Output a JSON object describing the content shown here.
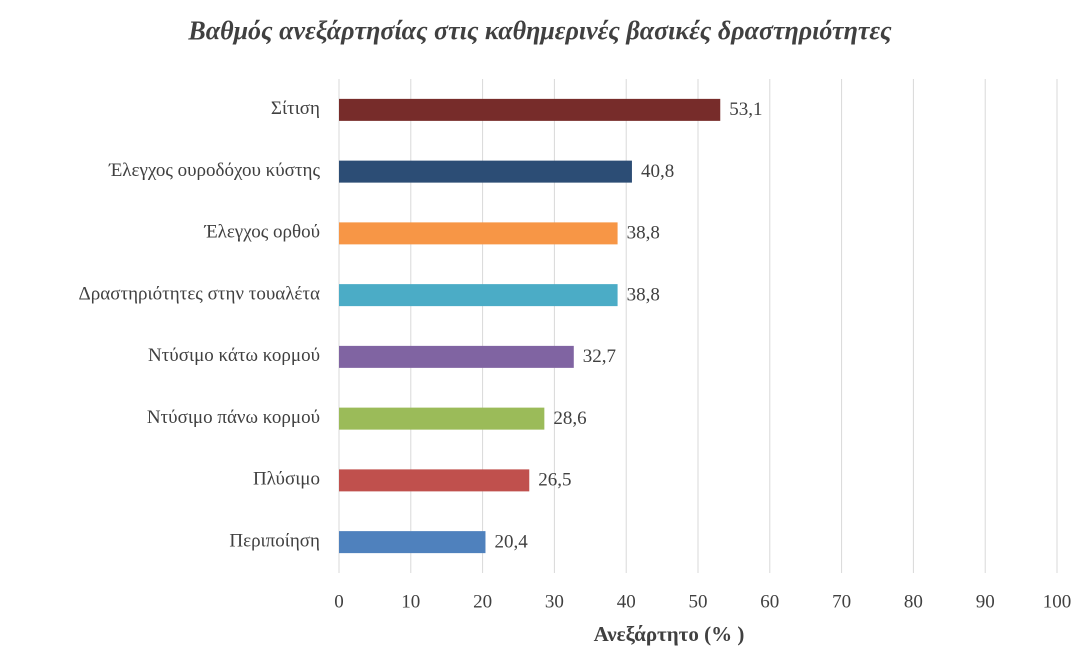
{
  "chart_data": {
    "type": "hbar",
    "title": "Βαθμός ανεξάρτησίας στις καθημερινές βασικές δραστηριότητες",
    "x_label": "Ανεξάρτητο (% )",
    "categories": [
      "Σίτιση",
      "Έλεγχος ουροδόχου κύστης",
      "Έλεγχος ορθού",
      "Δραστηριότητες στην τουαλέτα",
      "Ντύσιμο κάτω κορμού",
      "Ντύσιμο πάνω κορμού",
      "Πλύσιμο",
      "Περιποίηση"
    ],
    "values": [
      53.1,
      40.8,
      38.8,
      38.8,
      32.7,
      28.6,
      26.5,
      20.4
    ],
    "value_labels": [
      "53,1",
      "40,8",
      "38,8",
      "38,8",
      "32,7",
      "28,6",
      "26,5",
      "20,4"
    ],
    "colors": [
      "#772c2a",
      "#2c4d75",
      "#f79646",
      "#4bacc6",
      "#8064a2",
      "#9bbb59",
      "#c0504d",
      "#4f81bd"
    ],
    "xlim": [
      0,
      100
    ],
    "xticks": [
      0,
      10,
      20,
      30,
      40,
      50,
      60,
      70,
      80,
      90,
      100
    ],
    "grid": true
  }
}
